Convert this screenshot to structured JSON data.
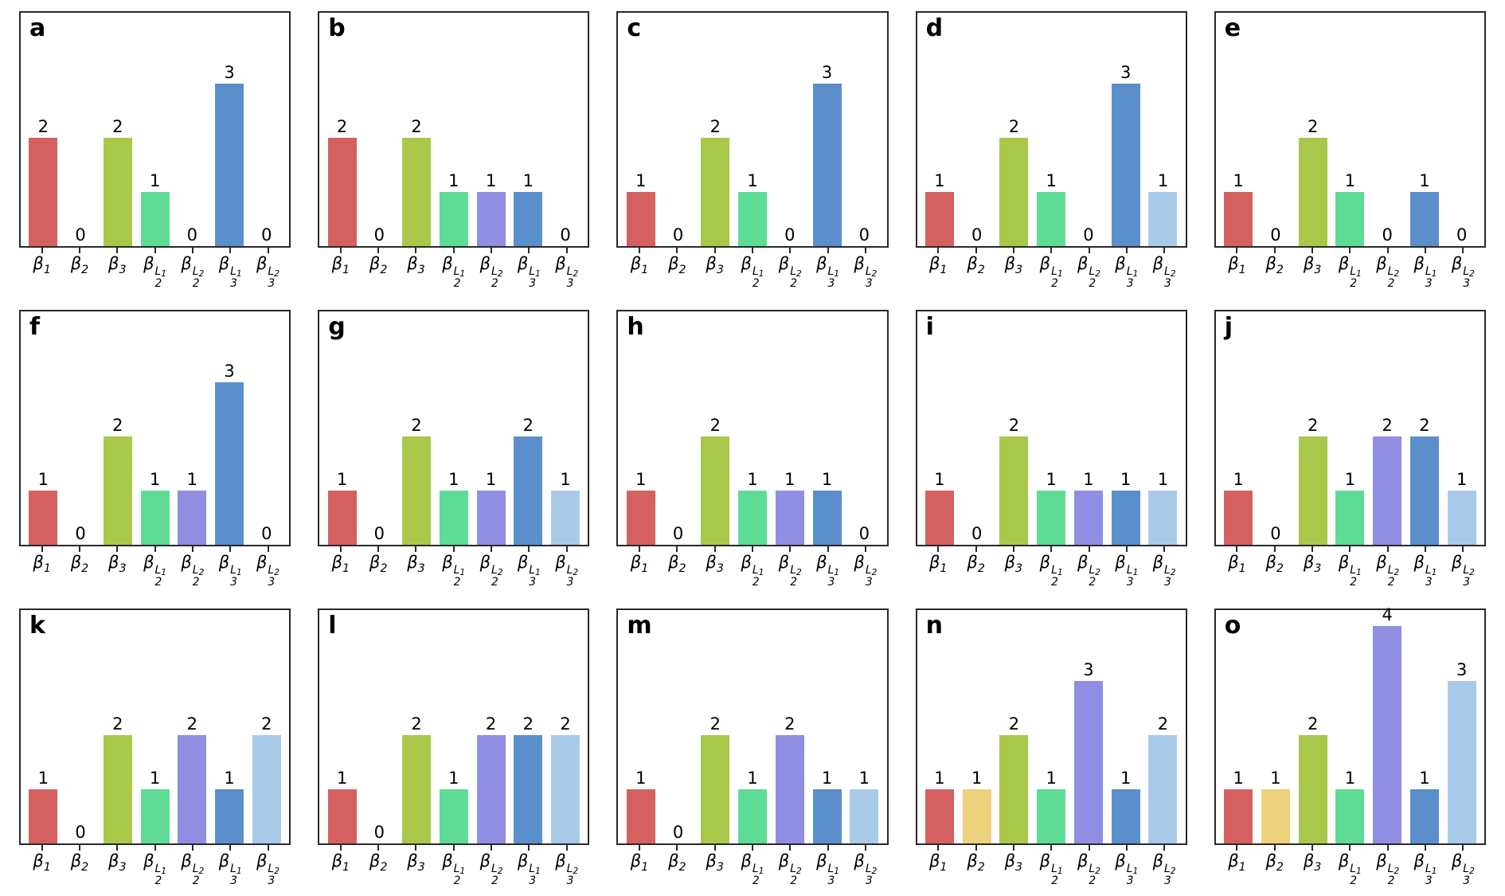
{
  "figure": {
    "background_color": "#ffffff",
    "frame_color": "#2a2a2a",
    "value_label_color": "#000000"
  },
  "chart_data": {
    "type": "bar",
    "title": "",
    "xlabel": "",
    "ylabel": "",
    "ylim": [
      0,
      4.3
    ],
    "grid": false,
    "legend": false,
    "categories": [
      {
        "name": "beta1",
        "base": "β",
        "sub": "1"
      },
      {
        "name": "beta2",
        "base": "β",
        "sub": "2"
      },
      {
        "name": "beta3",
        "base": "β",
        "sub": "3"
      },
      {
        "name": "beta2-L1",
        "base": "β",
        "sub": "2",
        "sup": "L",
        "sup_sub": "1"
      },
      {
        "name": "beta2-L2",
        "base": "β",
        "sub": "2",
        "sup": "L",
        "sup_sub": "2"
      },
      {
        "name": "beta3-L1",
        "base": "β",
        "sub": "3",
        "sup": "L",
        "sup_sub": "1"
      },
      {
        "name": "beta3-L2",
        "base": "β",
        "sub": "3",
        "sup": "L",
        "sup_sub": "2"
      }
    ],
    "bar_colors": [
      "#d4605f",
      "#eed17c",
      "#a9c84a",
      "#5edc95",
      "#8f8ee3",
      "#5b8fcb",
      "#a9c9e9"
    ],
    "panels": [
      {
        "label": "a",
        "values": [
          2,
          0,
          2,
          1,
          0,
          3,
          0
        ]
      },
      {
        "label": "b",
        "values": [
          2,
          0,
          2,
          1,
          1,
          1,
          0
        ]
      },
      {
        "label": "c",
        "values": [
          1,
          0,
          2,
          1,
          0,
          3,
          0
        ]
      },
      {
        "label": "d",
        "values": [
          1,
          0,
          2,
          1,
          0,
          3,
          1
        ]
      },
      {
        "label": "e",
        "values": [
          1,
          0,
          2,
          1,
          0,
          1,
          0
        ]
      },
      {
        "label": "f",
        "values": [
          1,
          0,
          2,
          1,
          1,
          3,
          0
        ]
      },
      {
        "label": "g",
        "values": [
          1,
          0,
          2,
          1,
          1,
          2,
          1
        ]
      },
      {
        "label": "h",
        "values": [
          1,
          0,
          2,
          1,
          1,
          1,
          0
        ]
      },
      {
        "label": "i",
        "values": [
          1,
          0,
          2,
          1,
          1,
          1,
          1
        ]
      },
      {
        "label": "j",
        "values": [
          1,
          0,
          2,
          1,
          2,
          2,
          1
        ]
      },
      {
        "label": "k",
        "values": [
          1,
          0,
          2,
          1,
          2,
          1,
          2
        ]
      },
      {
        "label": "l",
        "values": [
          1,
          0,
          2,
          1,
          2,
          2,
          2
        ]
      },
      {
        "label": "m",
        "values": [
          1,
          0,
          2,
          1,
          2,
          1,
          1
        ]
      },
      {
        "label": "n",
        "values": [
          1,
          1,
          2,
          1,
          3,
          1,
          2
        ]
      },
      {
        "label": "o",
        "values": [
          1,
          1,
          2,
          1,
          4,
          1,
          3
        ]
      }
    ]
  }
}
